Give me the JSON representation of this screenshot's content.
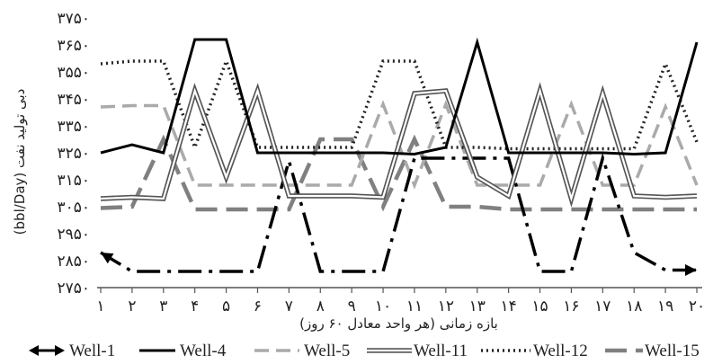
{
  "chart_data": {
    "type": "line",
    "title": "",
    "xlabel": "بازه زمانی (هر واحد معادل ۶۰ روز)",
    "ylabel": "(bbl/Day) دبی تولید نفت",
    "x": [
      1,
      2,
      3,
      4,
      5,
      6,
      7,
      8,
      9,
      10,
      11,
      12,
      13,
      14,
      15,
      16,
      17,
      18,
      19,
      20
    ],
    "x_tick_labels": [
      "۱",
      "۲",
      "۳",
      "۴",
      "۵",
      "۶",
      "۷",
      "۸",
      "۹",
      "۱۰",
      "۱۱",
      "۱۲",
      "۱۳",
      "۱۴",
      "۱۵",
      "۱۶",
      "۱۷",
      "۱۸",
      "۱۹",
      "۲۰"
    ],
    "y_tick_labels": [
      "۲۷۵۰",
      "۲۸۵۰",
      "۲۹۵۰",
      "۳۰۵۰",
      "۳۱۵۰",
      "۳۲۵۰",
      "۳۳۵۰",
      "۳۴۵۰",
      "۳۵۵۰",
      "۳۶۵۰",
      "۳۷۵۰"
    ],
    "y_ticks": [
      2750,
      2850,
      2950,
      3050,
      3150,
      3250,
      3350,
      3450,
      3550,
      3650,
      3750
    ],
    "ylim": [
      2750,
      3750
    ],
    "xlim": [
      1,
      20
    ],
    "grid": false,
    "legend_position": "bottom",
    "series": [
      {
        "name": "Well-1",
        "color": "#000000",
        "values": [
          2880,
          2810,
          2810,
          2810,
          2810,
          2810,
          3220,
          2810,
          2810,
          2810,
          3230,
          3230,
          3230,
          3230,
          2810,
          2810,
          3230,
          2880,
          2815,
          2815
        ]
      },
      {
        "name": "Well-4",
        "color": "#000000",
        "values": [
          3250,
          3280,
          3250,
          3670,
          3670,
          3250,
          3250,
          3250,
          3250,
          3250,
          3245,
          3270,
          3660,
          3250,
          3250,
          3250,
          3250,
          3245,
          3250,
          3660
        ]
      },
      {
        "name": "Well-5",
        "color": "#aaaaaa",
        "values": [
          3420,
          3425,
          3425,
          3130,
          3130,
          3130,
          3130,
          3130,
          3130,
          3430,
          3130,
          3430,
          3130,
          3130,
          3130,
          3430,
          3130,
          3130,
          3420,
          3130
        ]
      },
      {
        "name": "Well-11",
        "color": "#555555",
        "values": [
          3080,
          3085,
          3080,
          3480,
          3160,
          3480,
          3090,
          3090,
          3090,
          3085,
          3470,
          3480,
          3160,
          3090,
          3480,
          3080,
          3470,
          3090,
          3085,
          3090
        ]
      },
      {
        "name": "Well-12",
        "color": "#333333",
        "values": [
          3580,
          3590,
          3590,
          3270,
          3590,
          3270,
          3270,
          3270,
          3270,
          3590,
          3590,
          3270,
          3270,
          3265,
          3265,
          3265,
          3265,
          3265,
          3580,
          3290
        ]
      },
      {
        "name": "Well-15",
        "color": "#808080",
        "values": [
          3045,
          3050,
          3300,
          3040,
          3040,
          3040,
          3040,
          3300,
          3300,
          3050,
          3300,
          3050,
          3050,
          3040,
          3040,
          3040,
          3040,
          3040,
          3040,
          3040
        ]
      }
    ]
  }
}
